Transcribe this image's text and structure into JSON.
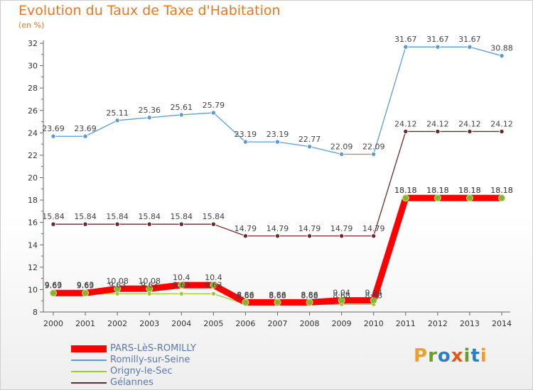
{
  "title": "Evolution du Taux de Taxe d'Habitation",
  "subtitle": "(en %)",
  "logo": {
    "letters": [
      "P",
      "r",
      "o",
      "x",
      "i",
      "t",
      "i"
    ],
    "colors": [
      "#e8a12a",
      "#6b9a2e",
      "#2d7fc3",
      "#e05a1a",
      "#6b9a2e",
      "#2d7fc3",
      "#e8a12a"
    ]
  },
  "chart_data": {
    "type": "line",
    "title": "Evolution du Taux de Taxe d'Habitation",
    "ylabel": "(en %)",
    "xlabel": "",
    "x": [
      "2000",
      "2001",
      "2002",
      "2003",
      "2004",
      "2005",
      "2006",
      "2007",
      "2008",
      "2009",
      "2010",
      "2011",
      "2012",
      "2013",
      "2014"
    ],
    "ylim": [
      8,
      32
    ],
    "yticks": [
      8,
      10,
      12,
      14,
      16,
      18,
      20,
      22,
      24,
      26,
      28,
      30,
      32
    ],
    "grid": false,
    "legend_position": "bottom-left",
    "series": [
      {
        "name": "PARS-LèS-ROMILLY",
        "color": "#ff0000",
        "marker": "#8ab32d",
        "values": [
          9.69,
          9.69,
          10.08,
          10.08,
          10.4,
          10.4,
          8.86,
          8.86,
          8.86,
          9.04,
          9.04,
          18.18,
          18.18,
          18.18,
          18.18
        ],
        "labels": [
          "9.69",
          "9.69",
          "10.08",
          "10.08",
          "10.4",
          "10.4",
          "8.86",
          "8.86",
          "8.86",
          "9.04",
          "9.04",
          "18.18",
          "18.18",
          "18.18",
          "18.18"
        ]
      },
      {
        "name": "Romilly-sur-Seine",
        "color": "#5b9bd5",
        "marker": "#5b9bd5",
        "values": [
          23.69,
          23.69,
          25.11,
          25.36,
          25.61,
          25.79,
          23.19,
          23.19,
          22.77,
          22.09,
          22.09,
          31.67,
          31.67,
          31.67,
          30.88
        ],
        "labels": [
          "23.69",
          "23.69",
          "25.11",
          "25.36",
          "25.61",
          "25.79",
          "23.19",
          "23.19",
          "22.77",
          "22.09",
          "22.09",
          "31.67",
          "31.67",
          "31.67",
          "30.88"
        ]
      },
      {
        "name": "Origny-le-Sec",
        "color": "#9acd32",
        "marker": "#9acd32",
        "values": [
          9.63,
          9.63,
          9.63,
          9.63,
          9.63,
          9.63,
          8.68,
          8.68,
          8.68,
          8.68,
          8.68,
          18.18,
          18.18,
          18.18,
          18.18
        ],
        "labels": [
          "9.63",
          "9.63",
          "9.63",
          "9.63",
          "9.63",
          "9.63",
          "8.68",
          "8.68",
          "8.68",
          "8.68",
          "8.68",
          "18.18",
          "18.18",
          "18.18",
          "18.18"
        ]
      },
      {
        "name": "Gélannes",
        "color": "#6b2a2a",
        "marker": "#6b2a2a",
        "values": [
          15.84,
          15.84,
          15.84,
          15.84,
          15.84,
          15.84,
          14.79,
          14.79,
          14.79,
          14.79,
          14.79,
          24.12,
          24.12,
          24.12,
          24.12
        ],
        "labels": [
          "15.84",
          "15.84",
          "15.84",
          "15.84",
          "15.84",
          "15.84",
          "14.79",
          "14.79",
          "14.79",
          "14.79",
          "14.79",
          "24.12",
          "24.12",
          "24.12",
          "24.12"
        ]
      }
    ]
  }
}
